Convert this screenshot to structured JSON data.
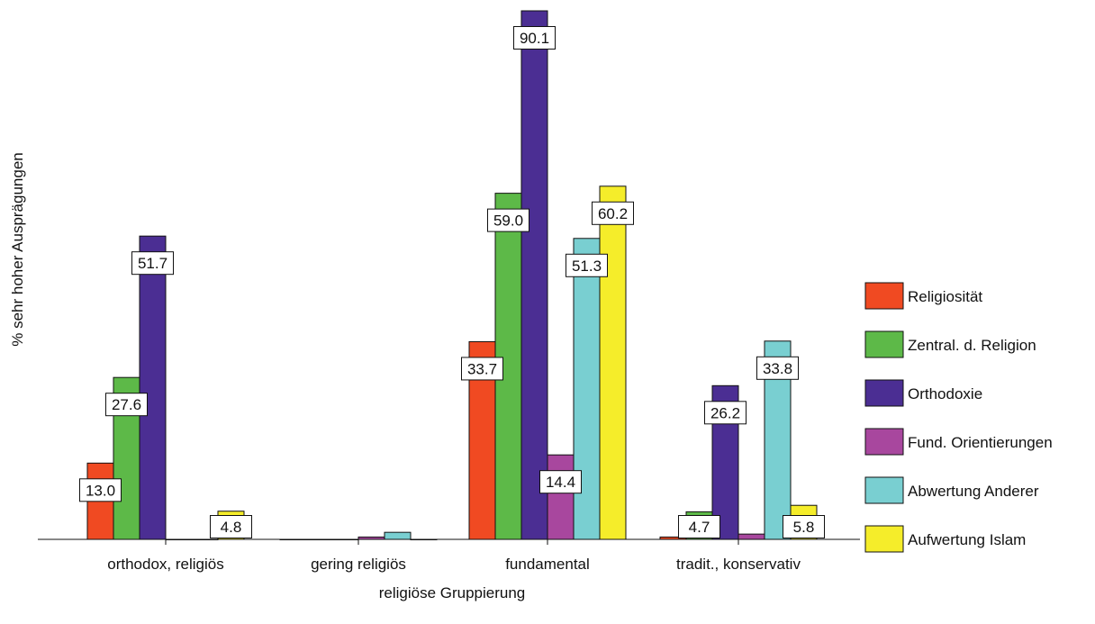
{
  "chart_data": {
    "type": "bar",
    "xlabel": "religiöse Gruppierung",
    "ylabel": "% sehr hoher Ausprägungen",
    "ylim": [
      0,
      92
    ],
    "grid": false,
    "legend_position": "right",
    "categories": [
      "orthodox, religiös",
      "gering religiös",
      "fundamental",
      "tradit., konservativ"
    ],
    "series": [
      {
        "name": "Religiosität",
        "color": "#f04a22",
        "values": [
          13.0,
          0.0,
          33.7,
          0.4
        ],
        "labels": [
          "13.0",
          null,
          "33.7",
          null
        ]
      },
      {
        "name": "Zentral. d. Religion",
        "color": "#5db948",
        "values": [
          27.6,
          0.0,
          59.0,
          4.7
        ],
        "labels": [
          "27.6",
          null,
          "59.0",
          "4.7"
        ]
      },
      {
        "name": "Orthodoxie",
        "color": "#4b2e93",
        "values": [
          51.7,
          0.0,
          90.1,
          26.2
        ],
        "labels": [
          "51.7",
          null,
          "90.1",
          "26.2"
        ]
      },
      {
        "name": "Fund. Orientierungen",
        "color": "#a8479e",
        "values": [
          0.0,
          0.4,
          14.4,
          0.9
        ],
        "labels": [
          null,
          null,
          "14.4",
          null
        ]
      },
      {
        "name": "Abwertung Anderer",
        "color": "#79cfd1",
        "values": [
          0.0,
          1.2,
          51.3,
          33.8
        ],
        "labels": [
          null,
          null,
          "51.3",
          "33.8"
        ]
      },
      {
        "name": "Aufwertung Islam",
        "color": "#f5ed2a",
        "values": [
          4.8,
          0.0,
          60.2,
          5.8
        ],
        "labels": [
          "4.8",
          null,
          "60.2",
          "5.8"
        ]
      }
    ]
  }
}
